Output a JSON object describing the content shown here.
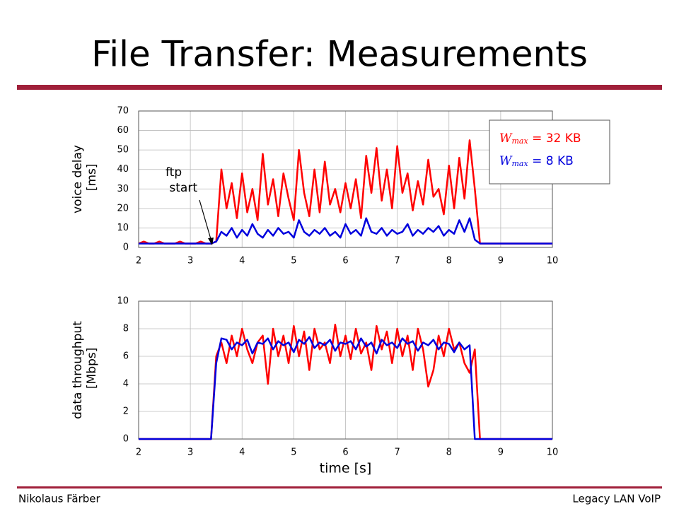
{
  "title": "File Transfer: Measurements",
  "footer_left": "Nikolaus Färber",
  "footer_right": "Legacy LAN VoIP",
  "chart_data": [
    {
      "type": "line",
      "ylabel": "voice delay [ms]",
      "annotation": "ftp start",
      "x": [
        2.0,
        2.1,
        2.2,
        2.3,
        2.4,
        2.5,
        2.6,
        2.7,
        2.8,
        2.9,
        3.0,
        3.1,
        3.2,
        3.3,
        3.4,
        3.5,
        3.6,
        3.7,
        3.8,
        3.9,
        4.0,
        4.1,
        4.2,
        4.3,
        4.4,
        4.5,
        4.6,
        4.7,
        4.8,
        4.9,
        5.0,
        5.1,
        5.2,
        5.3,
        5.4,
        5.5,
        5.6,
        5.7,
        5.8,
        5.9,
        6.0,
        6.1,
        6.2,
        6.3,
        6.4,
        6.5,
        6.6,
        6.7,
        6.8,
        6.9,
        7.0,
        7.1,
        7.2,
        7.3,
        7.4,
        7.5,
        7.6,
        7.7,
        7.8,
        7.9,
        8.0,
        8.1,
        8.2,
        8.3,
        8.4,
        8.5,
        8.6,
        8.7,
        8.8,
        8.9,
        9.0,
        9.1,
        9.2,
        9.3,
        9.4,
        9.5,
        9.6,
        9.7,
        9.8,
        9.9,
        10.0
      ],
      "series": [
        {
          "name": "Wmax = 32 KB",
          "color": "#ff0000",
          "values": [
            2,
            3,
            2,
            2,
            3,
            2,
            2,
            2,
            3,
            2,
            2,
            2,
            3,
            2,
            2,
            3,
            40,
            20,
            33,
            15,
            38,
            18,
            30,
            14,
            48,
            22,
            35,
            16,
            38,
            25,
            14,
            50,
            28,
            16,
            40,
            18,
            44,
            22,
            30,
            18,
            33,
            20,
            35,
            15,
            47,
            28,
            51,
            24,
            40,
            20,
            52,
            28,
            38,
            19,
            34,
            22,
            45,
            26,
            30,
            17,
            42,
            20,
            46,
            25,
            55,
            30,
            2,
            2,
            2,
            2,
            2,
            2,
            2,
            2,
            2,
            2,
            2,
            2,
            2,
            2,
            2
          ]
        },
        {
          "name": "Wmax = 8 KB",
          "color": "#0000dd",
          "values": [
            2,
            2,
            2,
            2,
            2,
            2,
            2,
            2,
            2,
            2,
            2,
            2,
            2,
            2,
            2,
            3,
            8,
            6,
            10,
            5,
            9,
            6,
            12,
            7,
            5,
            9,
            6,
            10,
            7,
            8,
            5,
            14,
            8,
            6,
            9,
            7,
            10,
            6,
            8,
            5,
            12,
            7,
            9,
            6,
            15,
            8,
            7,
            10,
            6,
            9,
            7,
            8,
            12,
            6,
            9,
            7,
            10,
            8,
            11,
            6,
            9,
            7,
            14,
            8,
            15,
            4,
            2,
            2,
            2,
            2,
            2,
            2,
            2,
            2,
            2,
            2,
            2,
            2,
            2,
            2,
            2
          ]
        }
      ],
      "xlim": [
        2,
        10
      ],
      "xticks": [
        2,
        3,
        4,
        5,
        6,
        7,
        8,
        9,
        10
      ],
      "ylim": [
        0,
        70
      ],
      "yticks": [
        0,
        10,
        20,
        30,
        40,
        50,
        60,
        70
      ],
      "grid": true,
      "legend": "upper right"
    },
    {
      "type": "line",
      "ylabel": "data throughput [Mbps]",
      "xlabel": "time [s]",
      "x": [
        2.0,
        2.1,
        2.2,
        2.3,
        2.4,
        2.5,
        2.6,
        2.7,
        2.8,
        2.9,
        3.0,
        3.1,
        3.2,
        3.3,
        3.4,
        3.5,
        3.6,
        3.7,
        3.8,
        3.9,
        4.0,
        4.1,
        4.2,
        4.3,
        4.4,
        4.5,
        4.6,
        4.7,
        4.8,
        4.9,
        5.0,
        5.1,
        5.2,
        5.3,
        5.4,
        5.5,
        5.6,
        5.7,
        5.8,
        5.9,
        6.0,
        6.1,
        6.2,
        6.3,
        6.4,
        6.5,
        6.6,
        6.7,
        6.8,
        6.9,
        7.0,
        7.1,
        7.2,
        7.3,
        7.4,
        7.5,
        7.6,
        7.7,
        7.8,
        7.9,
        8.0,
        8.1,
        8.2,
        8.3,
        8.4,
        8.5,
        8.6,
        8.7,
        8.8,
        8.9,
        9.0,
        9.1,
        9.2,
        9.3,
        9.4,
        9.5,
        9.6,
        9.7,
        9.8,
        9.9,
        10.0
      ],
      "series": [
        {
          "color": "#ff0000",
          "values": [
            0,
            0,
            0,
            0,
            0,
            0,
            0,
            0,
            0,
            0,
            0,
            0,
            0,
            0,
            0,
            6,
            7,
            5.5,
            7.5,
            6,
            8,
            6.5,
            5.5,
            7,
            7.5,
            4,
            8,
            6,
            7.5,
            5.5,
            8.2,
            6,
            7.8,
            5,
            8,
            6.5,
            7,
            5.5,
            8.3,
            6,
            7.5,
            5.8,
            8,
            6.2,
            7,
            5,
            8.2,
            6.5,
            7.8,
            5.5,
            8,
            6,
            7.5,
            5,
            8,
            6.5,
            3.8,
            5,
            7.5,
            6,
            8,
            6.5,
            7,
            5.5,
            4.8,
            6.5,
            0,
            0,
            0,
            0,
            0,
            0,
            0,
            0,
            0,
            0,
            0,
            0,
            0,
            0,
            0
          ]
        },
        {
          "color": "#0000dd",
          "values": [
            0,
            0,
            0,
            0,
            0,
            0,
            0,
            0,
            0,
            0,
            0,
            0,
            0,
            0,
            0,
            5.5,
            7.3,
            7.2,
            6.5,
            7,
            6.8,
            7.2,
            6.2,
            7,
            6.9,
            7.3,
            6.5,
            7.1,
            6.8,
            7,
            6.3,
            7.2,
            6.9,
            7.4,
            6.6,
            7,
            6.8,
            7.2,
            6.4,
            7,
            6.9,
            7.1,
            6.5,
            7.3,
            6.7,
            7,
            6.2,
            7.2,
            6.8,
            7,
            6.6,
            7.3,
            6.9,
            7.1,
            6.4,
            7,
            6.8,
            7.2,
            6.5,
            7,
            6.9,
            6.3,
            7,
            6.5,
            6.8,
            0,
            0,
            0,
            0,
            0,
            0,
            0,
            0,
            0,
            0,
            0,
            0,
            0,
            0,
            0,
            0
          ]
        }
      ],
      "xlim": [
        2,
        10
      ],
      "xticks": [
        2,
        3,
        4,
        5,
        6,
        7,
        8,
        9,
        10
      ],
      "ylim": [
        0,
        10
      ],
      "yticks": [
        0,
        2,
        4,
        6,
        8,
        10
      ],
      "grid": true
    }
  ]
}
